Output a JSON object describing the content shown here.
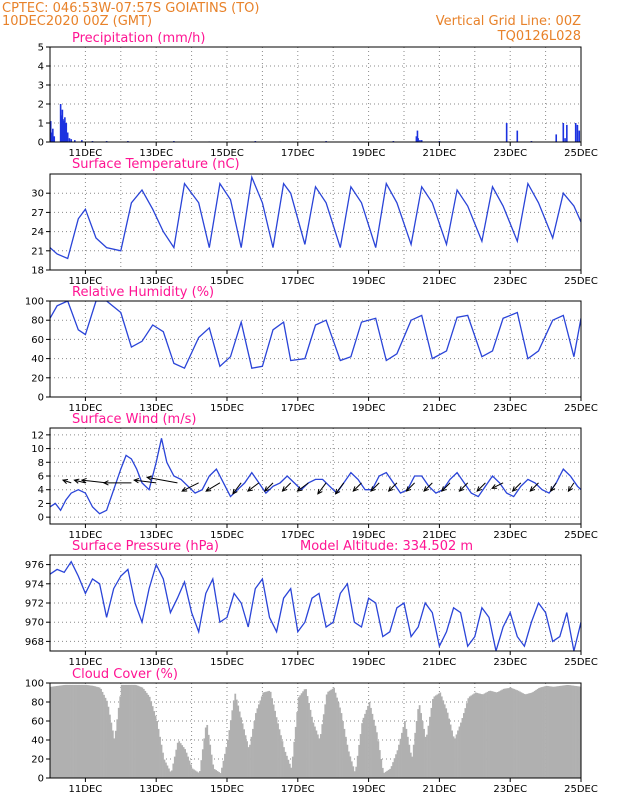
{
  "header": {
    "line1_left": "CPTEC:   046:53W-07:57S   GOIATINS (TO)",
    "line2_left": "10DEC2020 00Z (GMT)",
    "line1_right": "Vertical Grid Line: 00Z",
    "line2_right": "TQ0126L028",
    "color": "#e8822a"
  },
  "x_axis": {
    "start_day": 10,
    "end_day": 25,
    "labels": [
      "11DEC",
      "13DEC",
      "15DEC",
      "17DEC",
      "19DEC",
      "21DEC",
      "23DEC",
      "25DEC"
    ],
    "label_days": [
      11,
      13,
      15,
      17,
      19,
      21,
      23,
      25
    ]
  },
  "colors": {
    "line": "#2a44d8",
    "bar_blue": "#1c32e0",
    "cloud": "#b0b0b0",
    "title": "#ff1493",
    "arrow": "#000000"
  },
  "panels": {
    "precip": {
      "title": "Precipitation (mm/h)"
    },
    "temp": {
      "title": "Surface Temperature (nC)"
    },
    "rh": {
      "title": "Relative Humidity (%)"
    },
    "wind": {
      "title": "Surface Wind (m/s)"
    },
    "pres": {
      "title": "Surface Pressure (hPa)",
      "extra": "Model Altitude: 334.502 m"
    },
    "cloud": {
      "title": "Cloud Cover (%)"
    }
  },
  "chart_data": [
    {
      "type": "bar",
      "title": "Precipitation (mm/h)",
      "ylim": [
        0,
        5
      ],
      "yticks": [
        0,
        1,
        2,
        3,
        4,
        5
      ],
      "x": [
        10.02,
        10.06,
        10.08,
        10.12,
        10.3,
        10.33,
        10.35,
        10.37,
        10.4,
        10.42,
        10.44,
        10.46,
        10.5,
        10.55,
        10.6,
        10.7,
        10.9,
        11.2,
        11.6,
        12.2,
        13.5,
        14.5,
        15.8,
        16.5,
        17.8,
        18.6,
        19.7,
        20.35,
        20.38,
        20.4,
        20.45,
        20.5,
        21.0,
        22.9,
        23.2,
        23.6,
        24.3,
        24.5,
        24.55,
        24.6,
        24.85,
        24.9,
        24.95
      ],
      "values": [
        1.1,
        0.5,
        0.7,
        0.3,
        2.0,
        1.4,
        1.7,
        1.2,
        1.1,
        1.3,
        0.9,
        1.0,
        0.5,
        0.2,
        0.15,
        0.1,
        0.1,
        0.05,
        0.05,
        0.05,
        0.05,
        0.03,
        0.05,
        0.03,
        0.05,
        0.03,
        0.05,
        0.3,
        0.6,
        0.2,
        0.1,
        0.1,
        0.05,
        1.0,
        0.6,
        0.05,
        0.4,
        1.0,
        0.2,
        0.9,
        1.0,
        0.9,
        0.6
      ]
    },
    {
      "type": "line",
      "title": "Surface Temperature (nC)",
      "ylim": [
        18,
        33
      ],
      "yticks": [
        18,
        21,
        24,
        27,
        30
      ],
      "x": [
        10.0,
        10.2,
        10.5,
        10.8,
        11.0,
        11.3,
        11.6,
        12.0,
        12.3,
        12.6,
        12.9,
        13.2,
        13.5,
        13.8,
        14.2,
        14.5,
        14.8,
        15.1,
        15.4,
        15.7,
        16.0,
        16.3,
        16.6,
        16.8,
        17.2,
        17.5,
        17.8,
        18.2,
        18.5,
        18.8,
        19.2,
        19.5,
        19.8,
        20.2,
        20.5,
        20.8,
        21.2,
        21.5,
        21.8,
        22.2,
        22.5,
        22.8,
        23.2,
        23.5,
        23.8,
        24.2,
        24.5,
        24.8,
        25.0
      ],
      "y": [
        21.5,
        20.5,
        19.8,
        26.0,
        27.5,
        23.0,
        21.5,
        21.0,
        28.5,
        30.5,
        27.5,
        24.0,
        21.5,
        31.5,
        28.5,
        21.5,
        31.5,
        29.0,
        21.5,
        32.5,
        28.5,
        21.5,
        31.5,
        30.0,
        22.0,
        31.0,
        28.5,
        21.5,
        31.0,
        28.5,
        21.5,
        31.5,
        28.5,
        22.0,
        31.0,
        28.5,
        22.0,
        30.5,
        28.0,
        22.5,
        31.0,
        28.0,
        22.5,
        31.5,
        28.5,
        23.0,
        30.0,
        28.0,
        25.5
      ]
    },
    {
      "type": "line",
      "title": "Relative Humidity (%)",
      "ylim": [
        0,
        100
      ],
      "yticks": [
        0,
        20,
        40,
        60,
        80,
        100
      ],
      "x": [
        10.0,
        10.2,
        10.5,
        10.8,
        11.0,
        11.3,
        11.6,
        12.0,
        12.3,
        12.6,
        12.9,
        13.2,
        13.5,
        13.8,
        14.2,
        14.5,
        14.8,
        15.1,
        15.4,
        15.7,
        16.0,
        16.3,
        16.6,
        16.8,
        17.2,
        17.5,
        17.8,
        18.2,
        18.5,
        18.8,
        19.2,
        19.5,
        19.8,
        20.2,
        20.5,
        20.8,
        21.2,
        21.5,
        21.8,
        22.2,
        22.5,
        22.8,
        23.2,
        23.5,
        23.8,
        24.2,
        24.5,
        24.8,
        25.0
      ],
      "y": [
        82,
        95,
        100,
        70,
        65,
        100,
        100,
        88,
        52,
        58,
        75,
        68,
        35,
        30,
        62,
        72,
        32,
        42,
        78,
        30,
        32,
        70,
        78,
        38,
        40,
        75,
        80,
        38,
        42,
        78,
        82,
        38,
        45,
        80,
        85,
        40,
        48,
        83,
        85,
        42,
        48,
        82,
        88,
        40,
        48,
        80,
        85,
        42,
        82
      ]
    },
    {
      "type": "line",
      "title": "Surface Wind (m/s)",
      "ylim": [
        -1,
        13
      ],
      "yticks": [
        0,
        2,
        4,
        6,
        8,
        10,
        12
      ],
      "x": [
        10.0,
        10.15,
        10.3,
        10.45,
        10.6,
        10.8,
        11.0,
        11.2,
        11.4,
        11.6,
        11.8,
        12.0,
        12.15,
        12.3,
        12.45,
        12.6,
        12.8,
        13.0,
        13.15,
        13.3,
        13.5,
        13.7,
        13.9,
        14.1,
        14.3,
        14.5,
        14.7,
        14.9,
        15.1,
        15.3,
        15.5,
        15.7,
        15.9,
        16.1,
        16.3,
        16.5,
        16.7,
        16.9,
        17.1,
        17.3,
        17.5,
        17.7,
        17.9,
        18.1,
        18.3,
        18.5,
        18.7,
        18.9,
        19.1,
        19.3,
        19.5,
        19.7,
        19.9,
        20.1,
        20.3,
        20.5,
        20.7,
        20.9,
        21.1,
        21.3,
        21.5,
        21.7,
        21.9,
        22.1,
        22.3,
        22.5,
        22.7,
        22.9,
        23.1,
        23.3,
        23.5,
        23.7,
        23.9,
        24.1,
        24.3,
        24.5,
        24.7,
        24.9,
        25.0
      ],
      "y": [
        1.5,
        2.0,
        1.0,
        2.5,
        3.5,
        4.0,
        3.5,
        1.5,
        0.5,
        1.0,
        4.0,
        7.0,
        9.0,
        8.5,
        7.0,
        5.0,
        4.0,
        8.0,
        11.5,
        8.0,
        6.0,
        5.5,
        4.5,
        3.5,
        4.0,
        6.0,
        7.0,
        5.0,
        3.0,
        4.0,
        5.0,
        6.5,
        5.0,
        3.5,
        4.5,
        5.0,
        6.0,
        5.0,
        4.0,
        5.0,
        5.5,
        5.5,
        4.5,
        3.5,
        5.0,
        6.5,
        5.5,
        4.0,
        4.0,
        6.0,
        6.5,
        5.0,
        3.5,
        4.0,
        6.0,
        6.0,
        4.5,
        3.5,
        4.0,
        5.5,
        6.5,
        5.0,
        3.5,
        3.0,
        4.5,
        6.0,
        5.0,
        3.5,
        3.0,
        4.5,
        5.5,
        5.0,
        4.0,
        3.5,
        5.0,
        7.0,
        6.0,
        4.5,
        4.0
      ],
      "arrows": {
        "x": [
          10.6,
          11.0,
          11.6,
          12.3,
          13.0,
          13.6,
          14.2,
          14.8,
          15.4,
          15.9,
          16.3,
          16.8,
          17.3,
          17.8,
          18.3,
          18.8,
          19.3,
          19.8,
          20.3,
          20.8,
          21.3,
          21.8,
          22.3,
          22.8,
          23.3,
          23.8,
          24.3,
          24.8
        ],
        "u": [
          -1.5,
          -2.0,
          -4.5,
          -5.0,
          -4.0,
          -5.5,
          -3.0,
          -2.5,
          -1.5,
          -2.0,
          -1.5,
          -1.5,
          -2.0,
          -1.5,
          -1.5,
          -1.5,
          -1.5,
          -1.5,
          -1.5,
          -1.5,
          -1.5,
          -1.5,
          -1.5,
          -2.0,
          -1.5,
          -1.5,
          -1.0,
          -1.0
        ],
        "v": [
          0.5,
          0.5,
          0.5,
          0.0,
          0.5,
          1.0,
          -1.5,
          -1.5,
          -2.0,
          -1.5,
          -1.5,
          -1.5,
          -1.5,
          -2.0,
          -2.0,
          -1.5,
          -1.5,
          -1.5,
          -1.5,
          -1.5,
          -1.5,
          -1.5,
          -1.5,
          -1.0,
          -1.5,
          -1.5,
          -1.5,
          -1.5
        ]
      }
    },
    {
      "type": "line",
      "title": "Surface Pressure (hPa)",
      "ylim": [
        967,
        977
      ],
      "yticks": [
        968,
        970,
        972,
        974,
        976
      ],
      "x": [
        10.0,
        10.2,
        10.4,
        10.6,
        10.8,
        11.0,
        11.2,
        11.4,
        11.6,
        11.8,
        12.0,
        12.2,
        12.4,
        12.6,
        12.8,
        13.0,
        13.2,
        13.4,
        13.6,
        13.8,
        14.0,
        14.2,
        14.4,
        14.6,
        14.8,
        15.0,
        15.2,
        15.4,
        15.6,
        15.8,
        16.0,
        16.2,
        16.4,
        16.6,
        16.8,
        17.0,
        17.2,
        17.4,
        17.6,
        17.8,
        18.0,
        18.2,
        18.4,
        18.6,
        18.8,
        19.0,
        19.2,
        19.4,
        19.6,
        19.8,
        20.0,
        20.2,
        20.4,
        20.6,
        20.8,
        21.0,
        21.2,
        21.4,
        21.6,
        21.8,
        22.0,
        22.2,
        22.4,
        22.6,
        22.8,
        23.0,
        23.2,
        23.4,
        23.6,
        23.8,
        24.0,
        24.2,
        24.4,
        24.6,
        24.8,
        25.0
      ],
      "y": [
        975.0,
        975.5,
        975.2,
        976.3,
        974.8,
        973.0,
        974.5,
        974.0,
        970.5,
        973.5,
        974.8,
        975.5,
        972.0,
        970.0,
        973.5,
        976.0,
        974.5,
        971.0,
        972.5,
        974.2,
        971.0,
        969.0,
        973.0,
        974.5,
        970.0,
        970.5,
        973.0,
        972.0,
        969.5,
        973.5,
        974.5,
        970.5,
        969.0,
        972.5,
        973.5,
        969.0,
        970.0,
        972.5,
        973.0,
        969.5,
        970.0,
        973.0,
        974.0,
        970.0,
        969.5,
        972.5,
        972.0,
        968.5,
        969.0,
        971.5,
        972.0,
        968.5,
        969.5,
        972.0,
        971.0,
        967.5,
        969.0,
        971.5,
        971.0,
        967.5,
        968.5,
        971.5,
        970.5,
        967.0,
        969.5,
        971.0,
        968.5,
        967.5,
        970.0,
        972.0,
        971.0,
        968.0,
        968.5,
        971.0,
        967.0,
        970.0
      ]
    },
    {
      "type": "area",
      "title": "Cloud Cover (%)",
      "ylim": [
        0,
        100
      ],
      "yticks": [
        0,
        20,
        40,
        60,
        80,
        100
      ],
      "x": [
        10.0,
        10.2,
        10.4,
        10.6,
        10.8,
        11.0,
        11.2,
        11.4,
        11.6,
        11.8,
        12.0,
        12.2,
        12.4,
        12.6,
        12.8,
        13.0,
        13.2,
        13.4,
        13.6,
        13.8,
        14.0,
        14.2,
        14.4,
        14.6,
        14.8,
        15.0,
        15.2,
        15.4,
        15.6,
        15.8,
        16.0,
        16.2,
        16.4,
        16.6,
        16.8,
        17.0,
        17.2,
        17.4,
        17.6,
        17.8,
        18.0,
        18.2,
        18.4,
        18.6,
        18.8,
        19.0,
        19.2,
        19.4,
        19.6,
        19.8,
        20.0,
        20.2,
        20.4,
        20.6,
        20.8,
        21.0,
        21.2,
        21.4,
        21.6,
        21.8,
        22.0,
        22.2,
        22.4,
        22.6,
        22.8,
        23.0,
        23.2,
        23.4,
        23.6,
        23.8,
        24.0,
        24.2,
        24.4,
        24.6,
        24.8,
        25.0
      ],
      "y": [
        96,
        97,
        98,
        98,
        98,
        98,
        97,
        95,
        80,
        40,
        98,
        98,
        98,
        95,
        85,
        60,
        20,
        5,
        40,
        30,
        10,
        5,
        60,
        10,
        5,
        40,
        90,
        60,
        30,
        70,
        90,
        92,
        60,
        30,
        10,
        85,
        95,
        60,
        40,
        90,
        95,
        70,
        30,
        5,
        60,
        80,
        50,
        5,
        10,
        30,
        60,
        20,
        80,
        40,
        85,
        90,
        70,
        40,
        60,
        85,
        90,
        88,
        92,
        90,
        94,
        95,
        92,
        88,
        90,
        95,
        97,
        96,
        97,
        98,
        97,
        96
      ]
    }
  ]
}
